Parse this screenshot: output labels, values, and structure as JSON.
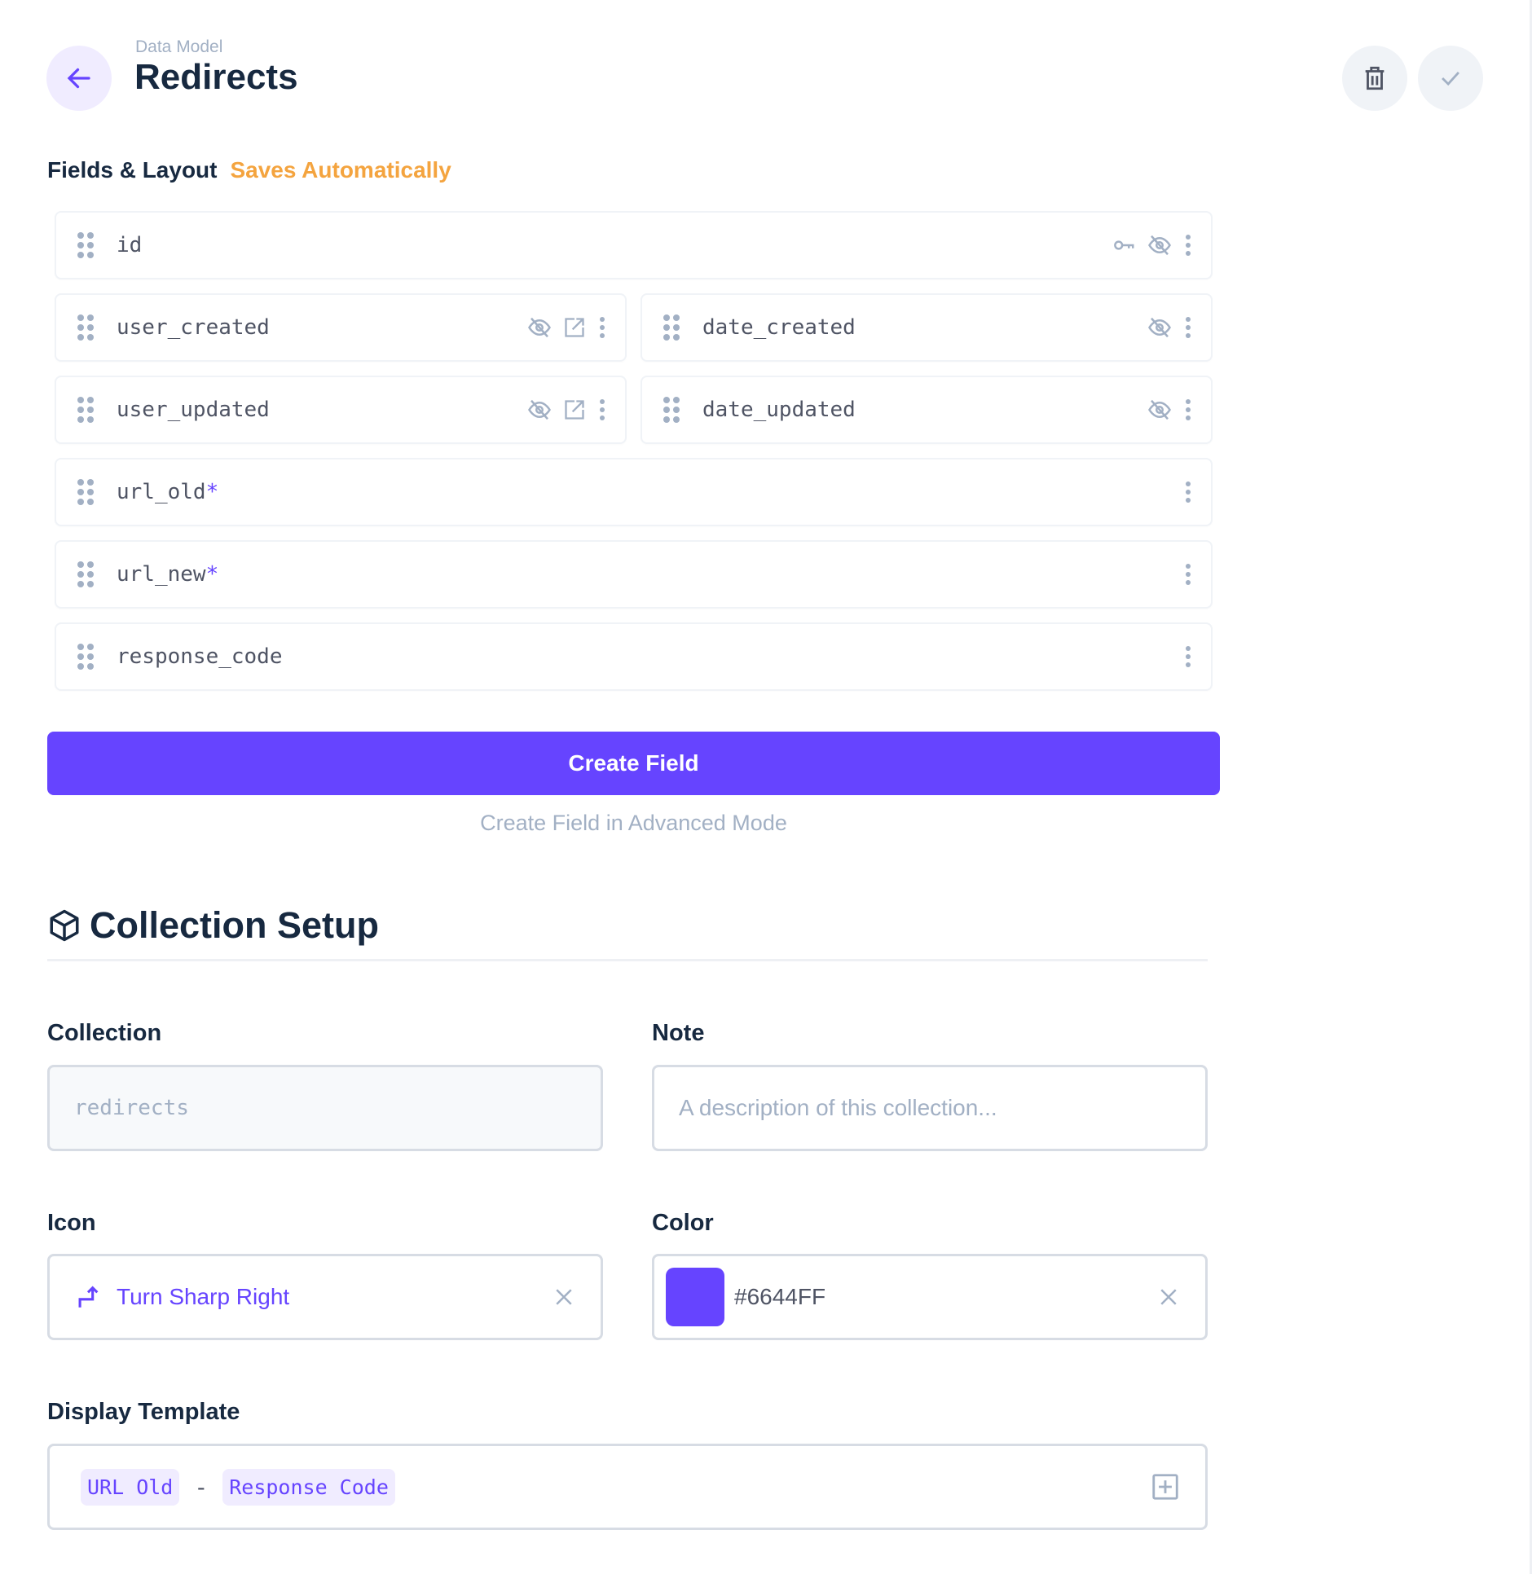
{
  "header": {
    "breadcrumb": "Data Model",
    "title": "Redirects"
  },
  "fields_section": {
    "title": "Fields & Layout",
    "status": "Saves Automatically"
  },
  "fields": [
    {
      "name": "id",
      "required": false,
      "icons": [
        "key-icon",
        "eye-off-icon",
        "more-vertical-icon"
      ]
    },
    {
      "name": "user_created",
      "required": false,
      "icons": [
        "eye-off-icon",
        "open-in-new-icon",
        "more-vertical-icon"
      ]
    },
    {
      "name": "date_created",
      "required": false,
      "icons": [
        "eye-off-icon",
        "more-vertical-icon"
      ]
    },
    {
      "name": "user_updated",
      "required": false,
      "icons": [
        "eye-off-icon",
        "open-in-new-icon",
        "more-vertical-icon"
      ]
    },
    {
      "name": "date_updated",
      "required": false,
      "icons": [
        "eye-off-icon",
        "more-vertical-icon"
      ]
    },
    {
      "name": "url_old",
      "required": true,
      "icons": [
        "more-vertical-icon"
      ]
    },
    {
      "name": "url_new",
      "required": true,
      "icons": [
        "more-vertical-icon"
      ]
    },
    {
      "name": "response_code",
      "required": false,
      "icons": [
        "more-vertical-icon"
      ]
    }
  ],
  "required_marker": "*",
  "create_field_label": "Create Field",
  "advanced_label": "Create Field in Advanced Mode",
  "setup": {
    "title": "Collection Setup",
    "collection_label": "Collection",
    "collection_value": "redirects",
    "note_label": "Note",
    "note_placeholder": "A description of this collection...",
    "icon_label": "Icon",
    "icon_value": "Turn Sharp Right",
    "color_label": "Color",
    "color_value": "#6644FF",
    "template_label": "Display Template",
    "template_chips": [
      "URL Old",
      "Response Code"
    ],
    "template_separator": "-"
  },
  "colors": {
    "accent": "#6644FF",
    "warning": "#F4A43F",
    "muted": "#A2B0C4"
  }
}
